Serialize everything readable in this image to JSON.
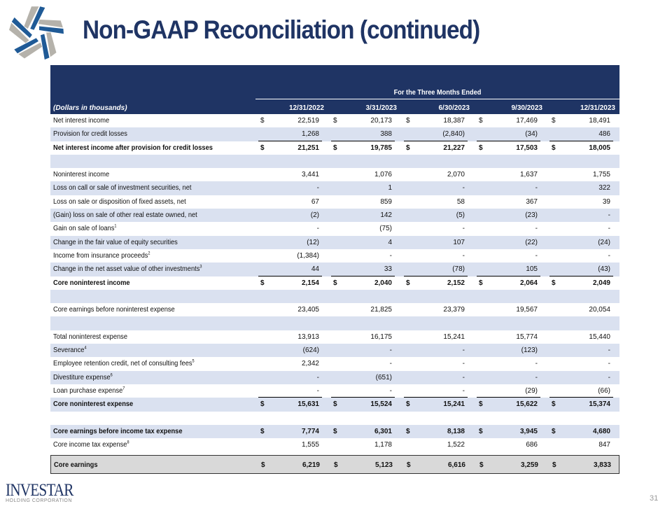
{
  "title": "Non-GAAP Reconciliation (continued)",
  "colors": {
    "brand_navy": "#1f3464",
    "row_shade": "#dae1f0",
    "final_row": "#d9d9d9"
  },
  "table": {
    "span_header": "For the Three Months Ended",
    "units_label": "(Dollars in thousands)",
    "periods": [
      "12/31/2022",
      "3/31/2023",
      "6/30/2023",
      "9/30/2023",
      "12/31/2023"
    ],
    "rows": [
      {
        "label": "Net interest income",
        "dollar": true,
        "values": [
          "22,519",
          "20,173",
          "18,387",
          "17,469",
          "18,491"
        ]
      },
      {
        "label": "Provision for credit losses",
        "shade": true,
        "ul": true,
        "values": [
          "1,268",
          "388",
          "(2,840)",
          "(34)",
          "486"
        ]
      },
      {
        "label": "Net interest income after provision for credit losses",
        "bold": true,
        "dollar": true,
        "values": [
          "21,251",
          "19,785",
          "21,227",
          "17,503",
          "18,005"
        ]
      },
      {
        "label": "",
        "shade": true,
        "values": []
      },
      {
        "label": "Noninterest income",
        "values": [
          "3,441",
          "1,076",
          "2,070",
          "1,637",
          "1,755"
        ]
      },
      {
        "label": "Loss on call or sale of investment securities, net",
        "shade": true,
        "values": [
          "-",
          "1",
          "-",
          "-",
          "322"
        ]
      },
      {
        "label": "Loss on sale or disposition of fixed assets, net",
        "values": [
          "67",
          "859",
          "58",
          "367",
          "39"
        ]
      },
      {
        "label": "(Gain) loss on sale of other real estate owned, net",
        "shade": true,
        "values": [
          "(2)",
          "142",
          "(5)",
          "(23)",
          "-"
        ]
      },
      {
        "label": "Gain on sale of loans",
        "sup": "1",
        "values": [
          "-",
          "(75)",
          "-",
          "-",
          "-"
        ]
      },
      {
        "label": "Change in the fair value of equity securities",
        "shade": true,
        "values": [
          "(12)",
          "4",
          "107",
          "(22)",
          "(24)"
        ]
      },
      {
        "label": "Income from insurance proceeds",
        "sup": "2",
        "values": [
          "(1,384)",
          "-",
          "-",
          "-",
          "-"
        ]
      },
      {
        "label": "Change in the net asset value of other investments",
        "sup": "3",
        "shade": true,
        "ul": true,
        "values": [
          "44",
          "33",
          "(78)",
          "105",
          "(43)"
        ]
      },
      {
        "label": "Core noninterest income",
        "bold": true,
        "dollar": true,
        "values": [
          "2,154",
          "2,040",
          "2,152",
          "2,064",
          "2,049"
        ]
      },
      {
        "label": "",
        "shade": true,
        "values": []
      },
      {
        "label": "Core earnings before noninterest expense",
        "values": [
          "23,405",
          "21,825",
          "23,379",
          "19,567",
          "20,054"
        ]
      },
      {
        "label": "",
        "shade": true,
        "values": []
      },
      {
        "label": "Total noninterest expense",
        "values": [
          "13,913",
          "16,175",
          "15,241",
          "15,774",
          "15,440"
        ]
      },
      {
        "label": "Severance",
        "sup": "4",
        "shade": true,
        "values": [
          "(624)",
          "-",
          "-",
          "(123)",
          "-"
        ]
      },
      {
        "label": "Employee retention credit, net of consulting fees",
        "sup": "5",
        "values": [
          "2,342",
          "-",
          "-",
          "-",
          "-"
        ]
      },
      {
        "label": "Divestiture expense",
        "sup": "6",
        "shade": true,
        "values": [
          "-",
          "(651)",
          "-",
          "-",
          "-"
        ]
      },
      {
        "label": "Loan purchase expense",
        "sup": "7",
        "ul": true,
        "values": [
          "-",
          "-",
          "-",
          "(29)",
          "(66)"
        ]
      },
      {
        "label": "Core noninterest expense",
        "bold": true,
        "dollar": true,
        "shade": true,
        "values": [
          "15,631",
          "15,524",
          "15,241",
          "15,622",
          "15,374"
        ]
      },
      {
        "label": "",
        "values": []
      },
      {
        "label": "Core earnings before income tax expense",
        "bold": true,
        "dollar": true,
        "shade": true,
        "values": [
          "7,774",
          "6,301",
          "8,138",
          "3,945",
          "4,680"
        ]
      },
      {
        "label": "Core income tax expense",
        "sup": "8",
        "values": [
          "1,555",
          "1,178",
          "1,522",
          "686",
          "847"
        ]
      },
      {
        "label": "Core earnings",
        "bold": true,
        "dollar": true,
        "final": true,
        "values": [
          "6,219",
          "5,123",
          "6,616",
          "3,259",
          "3,833"
        ]
      }
    ],
    "dollar_sign": "$"
  },
  "footer": {
    "logo_text": "INVESTAR",
    "logo_sub": "HOLDING CORPORATION",
    "page_number": "31"
  }
}
